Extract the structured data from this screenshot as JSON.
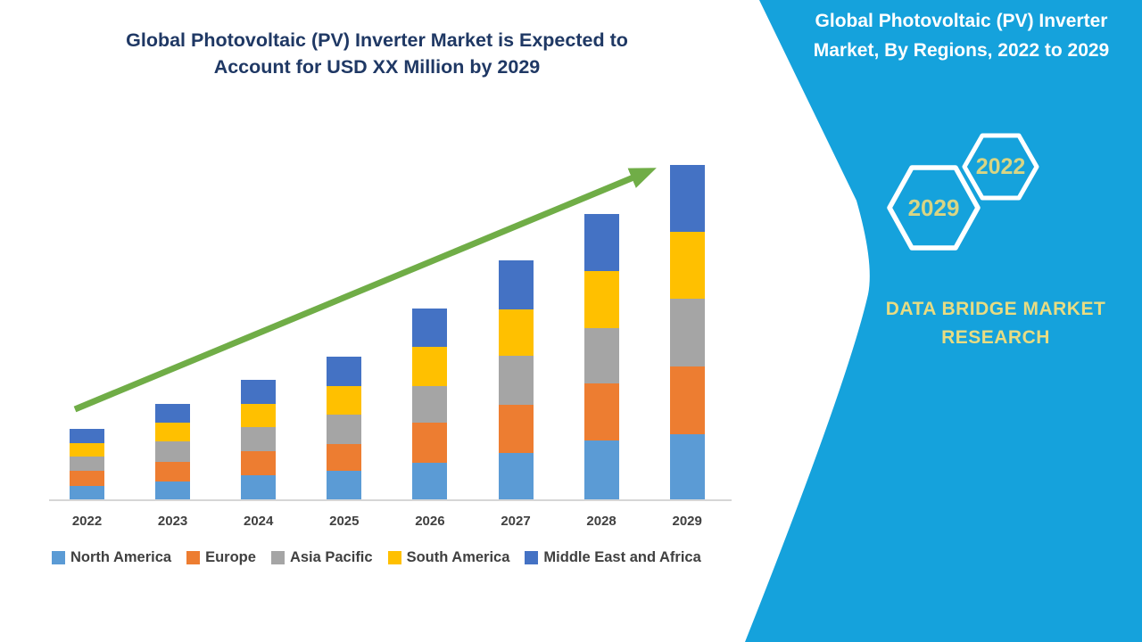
{
  "main": {
    "title_lines": [
      "Global Photovoltaic (PV) Inverter Market is Expected to",
      "Account for USD XX Million by 2029"
    ],
    "title_color": "#1F3864"
  },
  "chart_data": {
    "type": "bar",
    "stacked": true,
    "title": "Global Photovoltaic (PV) Inverter Market is Expected to Account for USD XX Million by 2029",
    "xlabel": "",
    "ylabel": "",
    "y_axis_visible": false,
    "values_note": "relative units estimated from bar pixel heights; no y-axis shown (USD XX Million)",
    "grid": false,
    "legend_position": "bottom",
    "categories": [
      "2022",
      "2023",
      "2024",
      "2025",
      "2026",
      "2027",
      "2028",
      "2029"
    ],
    "series": [
      {
        "name": "North America",
        "color": "#5B9BD5",
        "values": [
          15,
          20,
          27,
          32,
          41,
          52,
          66,
          73
        ]
      },
      {
        "name": "Europe",
        "color": "#ED7D31",
        "values": [
          17,
          22,
          27,
          30,
          45,
          54,
          64,
          76
        ]
      },
      {
        "name": "Asia Pacific",
        "color": "#A5A5A5",
        "values": [
          16,
          23,
          27,
          33,
          41,
          55,
          62,
          76
        ]
      },
      {
        "name": "South America",
        "color": "#FFC000",
        "values": [
          15,
          21,
          26,
          32,
          44,
          52,
          64,
          75
        ]
      },
      {
        "name": "Middle East and Africa",
        "color": "#4472C4",
        "values": [
          16,
          21,
          27,
          33,
          43,
          55,
          64,
          75
        ]
      }
    ],
    "totals": [
      79,
      107,
      134,
      160,
      214,
      268,
      320,
      375
    ],
    "trend_arrow": {
      "present": true,
      "color": "#70AD47",
      "direction": "up-right"
    },
    "axis_label_color": "#404040",
    "axis_line_color": "#D6D6D6"
  },
  "sidebar": {
    "bg_color": "#15A2DC",
    "title_lines": [
      "Global Photovoltaic (PV) Inverter",
      "Market, By Regions, 2022 to 2029"
    ],
    "hexagons": [
      {
        "label": "2029"
      },
      {
        "label": "2022"
      }
    ],
    "hexagon_label_color": "#D8D584",
    "hexagon_outline_color": "#FFFFFF",
    "brand_lines": [
      "DATA BRIDGE MARKET",
      "RESEARCH"
    ],
    "brand_color": "#E8DC82"
  }
}
